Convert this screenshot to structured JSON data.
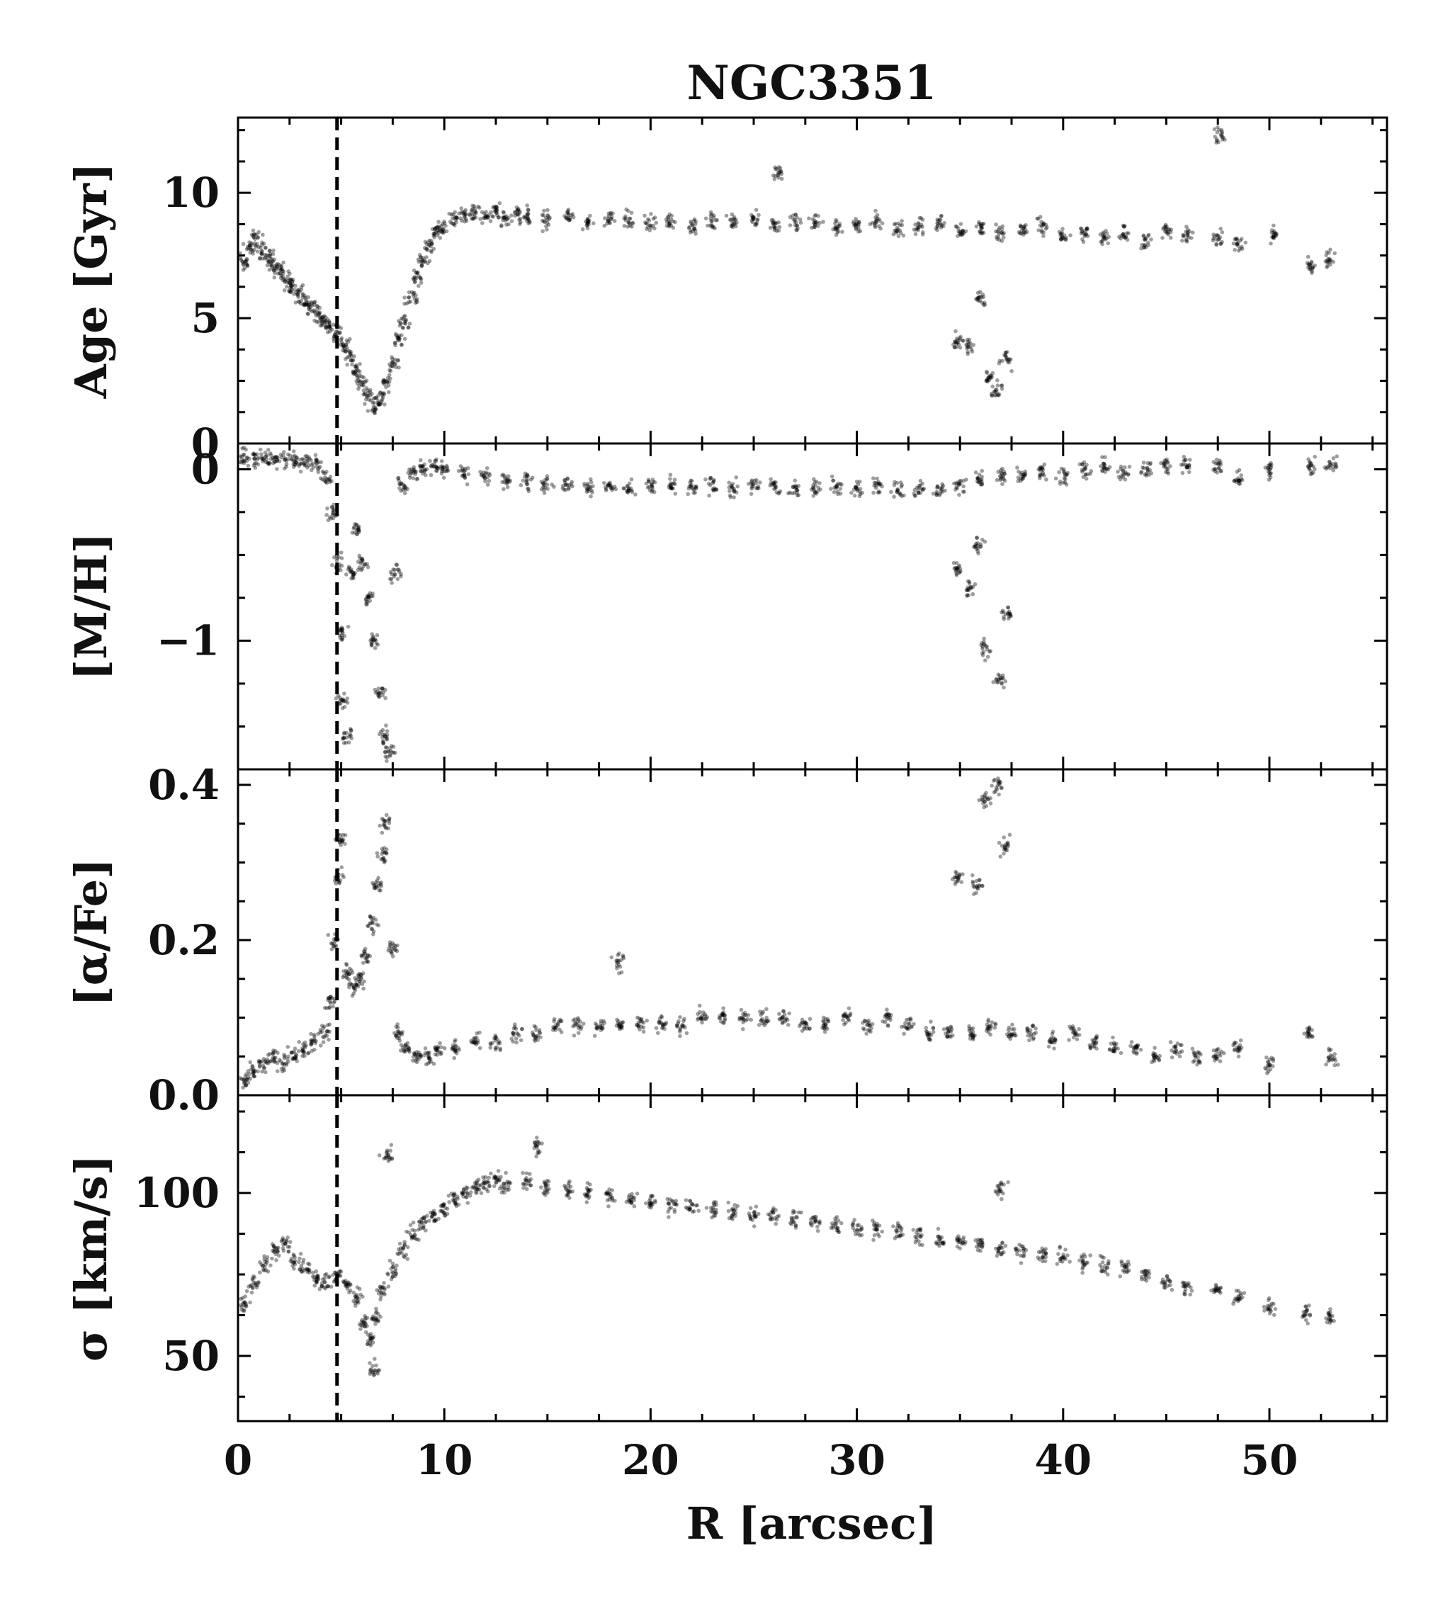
{
  "chart_data": {
    "type": "scatter",
    "title": "NGC3351",
    "xlabel": "R [arcsec]",
    "xlim": [
      0,
      55.7
    ],
    "xticks": [
      0,
      10,
      20,
      30,
      40,
      50
    ],
    "x_tick_labels": [
      "0",
      "10",
      "20",
      "30",
      "40",
      "50"
    ],
    "marker_color": "#000000",
    "reference_line": {
      "x": 4.8,
      "style": "dashed",
      "color": "#000000"
    },
    "panels": [
      {
        "name": "age",
        "ylabel": "Age [Gyr]",
        "ylim": [
          0,
          13
        ],
        "yticks": [
          0,
          5,
          10
        ],
        "y_tick_labels": [
          "0",
          "5",
          "10"
        ],
        "points": [
          [
            0.3,
            7.2
          ],
          [
            0.6,
            7.8
          ],
          [
            0.9,
            8.2
          ],
          [
            1.2,
            7.6
          ],
          [
            1.5,
            7.4
          ],
          [
            1.8,
            7.1
          ],
          [
            2.1,
            6.8
          ],
          [
            2.4,
            6.5
          ],
          [
            2.7,
            6.2
          ],
          [
            3.0,
            5.9
          ],
          [
            3.3,
            5.6
          ],
          [
            3.6,
            5.4
          ],
          [
            3.9,
            5.1
          ],
          [
            4.2,
            4.9
          ],
          [
            4.5,
            4.6
          ],
          [
            4.8,
            4.3
          ],
          [
            5.1,
            3.9
          ],
          [
            5.4,
            3.4
          ],
          [
            5.7,
            2.9
          ],
          [
            6.0,
            2.4
          ],
          [
            6.3,
            1.9
          ],
          [
            6.6,
            1.5
          ],
          [
            6.9,
            1.8
          ],
          [
            7.2,
            2.4
          ],
          [
            7.5,
            3.2
          ],
          [
            7.8,
            4.1
          ],
          [
            8.1,
            4.9
          ],
          [
            8.4,
            5.8
          ],
          [
            8.7,
            6.6
          ],
          [
            9.0,
            7.3
          ],
          [
            9.3,
            7.9
          ],
          [
            9.6,
            8.4
          ],
          [
            9.9,
            8.6
          ],
          [
            10.5,
            8.9
          ],
          [
            11.0,
            9.1
          ],
          [
            11.5,
            9.2
          ],
          [
            12.0,
            9.1
          ],
          [
            12.5,
            9.3
          ],
          [
            13.0,
            9.0
          ],
          [
            13.5,
            9.2
          ],
          [
            14.0,
            9.0
          ],
          [
            15.0,
            8.9
          ],
          [
            16.0,
            9.1
          ],
          [
            17.0,
            8.8
          ],
          [
            18.0,
            8.9
          ],
          [
            19.0,
            9.0
          ],
          [
            20.0,
            8.8
          ],
          [
            21.0,
            8.9
          ],
          [
            22.0,
            8.7
          ],
          [
            23.0,
            8.9
          ],
          [
            24.0,
            8.8
          ],
          [
            25.0,
            8.9
          ],
          [
            26.0,
            8.7
          ],
          [
            27.0,
            8.8
          ],
          [
            28.0,
            8.9
          ],
          [
            29.0,
            8.6
          ],
          [
            30.0,
            8.7
          ],
          [
            31.0,
            8.8
          ],
          [
            32.0,
            8.6
          ],
          [
            33.0,
            8.7
          ],
          [
            34.0,
            8.8
          ],
          [
            35.0,
            8.5
          ],
          [
            36.0,
            8.6
          ],
          [
            37.0,
            8.4
          ],
          [
            38.0,
            8.5
          ],
          [
            39.0,
            8.7
          ],
          [
            40.0,
            8.3
          ],
          [
            41.0,
            8.4
          ],
          [
            42.0,
            8.2
          ],
          [
            43.0,
            8.4
          ],
          [
            44.0,
            8.1
          ],
          [
            45.0,
            8.5
          ],
          [
            46.0,
            8.3
          ],
          [
            47.5,
            8.2
          ],
          [
            48.5,
            8.0
          ],
          [
            50.2,
            8.3
          ],
          [
            52.0,
            7.1
          ],
          [
            52.9,
            7.4
          ],
          [
            47.6,
            12.3
          ],
          [
            26.2,
            10.8
          ],
          [
            34.8,
            4.1
          ],
          [
            35.4,
            3.9
          ],
          [
            36.0,
            5.8
          ],
          [
            36.4,
            2.6
          ],
          [
            36.8,
            2.1
          ],
          [
            37.2,
            3.4
          ]
        ]
      },
      {
        "name": "metallicity",
        "ylabel": "[M/H]",
        "ylim": [
          -1.75,
          0.15
        ],
        "yticks": [
          -1,
          0
        ],
        "y_tick_labels": [
          "−1",
          "0"
        ],
        "points": [
          [
            0.3,
            0.07
          ],
          [
            0.8,
            0.06
          ],
          [
            1.3,
            0.06
          ],
          [
            1.8,
            0.05
          ],
          [
            2.3,
            0.06
          ],
          [
            2.8,
            0.05
          ],
          [
            3.3,
            0.04
          ],
          [
            3.8,
            0.03
          ],
          [
            4.3,
            -0.05
          ],
          [
            4.6,
            -0.25
          ],
          [
            4.8,
            -0.55
          ],
          [
            5.0,
            -0.95
          ],
          [
            5.1,
            -1.35
          ],
          [
            5.3,
            -1.55
          ],
          [
            5.5,
            -0.6
          ],
          [
            5.8,
            -0.35
          ],
          [
            6.0,
            -0.55
          ],
          [
            6.3,
            -0.75
          ],
          [
            6.6,
            -1.0
          ],
          [
            6.9,
            -1.3
          ],
          [
            7.1,
            -1.55
          ],
          [
            7.3,
            -1.65
          ],
          [
            7.6,
            -0.6
          ],
          [
            8.0,
            -0.1
          ],
          [
            8.5,
            -0.02
          ],
          [
            9.0,
            0.01
          ],
          [
            9.5,
            0.02
          ],
          [
            10.0,
            0.0
          ],
          [
            11.0,
            -0.02
          ],
          [
            12.0,
            -0.05
          ],
          [
            13.0,
            -0.06
          ],
          [
            14.0,
            -0.07
          ],
          [
            15.0,
            -0.08
          ],
          [
            16.0,
            -0.09
          ],
          [
            17.0,
            -0.1
          ],
          [
            18.0,
            -0.1
          ],
          [
            19.0,
            -0.11
          ],
          [
            20.0,
            -0.1
          ],
          [
            21.0,
            -0.1
          ],
          [
            22.0,
            -0.11
          ],
          [
            23.0,
            -0.1
          ],
          [
            24.0,
            -0.11
          ],
          [
            25.0,
            -0.1
          ],
          [
            26.0,
            -0.1
          ],
          [
            27.0,
            -0.11
          ],
          [
            28.0,
            -0.1
          ],
          [
            29.0,
            -0.1
          ],
          [
            30.0,
            -0.11
          ],
          [
            31.0,
            -0.1
          ],
          [
            32.0,
            -0.12
          ],
          [
            33.0,
            -0.11
          ],
          [
            34.0,
            -0.13
          ],
          [
            35.0,
            -0.1
          ],
          [
            36.0,
            -0.06
          ],
          [
            37.0,
            -0.04
          ],
          [
            38.0,
            -0.03
          ],
          [
            39.0,
            -0.01
          ],
          [
            40.0,
            -0.03
          ],
          [
            41.0,
            0.0
          ],
          [
            42.0,
            0.01
          ],
          [
            43.0,
            -0.02
          ],
          [
            44.0,
            0.0
          ],
          [
            45.0,
            0.02
          ],
          [
            46.0,
            0.02
          ],
          [
            47.5,
            0.02
          ],
          [
            48.5,
            -0.05
          ],
          [
            50.0,
            0.0
          ],
          [
            52.0,
            0.02
          ],
          [
            53.0,
            0.02
          ],
          [
            34.9,
            -0.58
          ],
          [
            35.5,
            -0.7
          ],
          [
            35.9,
            -0.45
          ],
          [
            36.2,
            -1.05
          ],
          [
            36.9,
            -1.22
          ],
          [
            37.3,
            -0.85
          ]
        ]
      },
      {
        "name": "alpha-fe",
        "ylabel": "[α/Fe]",
        "ylim": [
          0.0,
          0.42
        ],
        "yticks": [
          0.0,
          0.2,
          0.4
        ],
        "y_tick_labels": [
          "0.0",
          "0.2",
          "0.4"
        ],
        "points": [
          [
            0.3,
            0.02
          ],
          [
            0.7,
            0.03
          ],
          [
            1.2,
            0.04
          ],
          [
            1.7,
            0.05
          ],
          [
            2.2,
            0.04
          ],
          [
            2.7,
            0.05
          ],
          [
            3.2,
            0.06
          ],
          [
            3.7,
            0.07
          ],
          [
            4.2,
            0.08
          ],
          [
            4.5,
            0.12
          ],
          [
            4.7,
            0.2
          ],
          [
            4.9,
            0.28
          ],
          [
            5.0,
            0.33
          ],
          [
            5.3,
            0.16
          ],
          [
            5.6,
            0.14
          ],
          [
            5.9,
            0.15
          ],
          [
            6.2,
            0.18
          ],
          [
            6.5,
            0.22
          ],
          [
            6.8,
            0.27
          ],
          [
            7.0,
            0.31
          ],
          [
            7.2,
            0.35
          ],
          [
            7.5,
            0.19
          ],
          [
            7.8,
            0.08
          ],
          [
            8.2,
            0.06
          ],
          [
            8.7,
            0.05
          ],
          [
            9.2,
            0.05
          ],
          [
            9.7,
            0.06
          ],
          [
            10.5,
            0.06
          ],
          [
            11.5,
            0.07
          ],
          [
            12.5,
            0.07
          ],
          [
            13.5,
            0.08
          ],
          [
            14.5,
            0.08
          ],
          [
            15.5,
            0.09
          ],
          [
            16.5,
            0.09
          ],
          [
            17.5,
            0.09
          ],
          [
            18.5,
            0.09
          ],
          [
            19.5,
            0.09
          ],
          [
            20.5,
            0.09
          ],
          [
            21.5,
            0.09
          ],
          [
            22.5,
            0.1
          ],
          [
            23.5,
            0.1
          ],
          [
            24.5,
            0.1
          ],
          [
            25.5,
            0.1
          ],
          [
            26.5,
            0.1
          ],
          [
            27.5,
            0.09
          ],
          [
            28.5,
            0.09
          ],
          [
            29.5,
            0.1
          ],
          [
            30.5,
            0.09
          ],
          [
            31.5,
            0.1
          ],
          [
            32.5,
            0.09
          ],
          [
            33.5,
            0.08
          ],
          [
            34.5,
            0.08
          ],
          [
            35.5,
            0.08
          ],
          [
            36.5,
            0.09
          ],
          [
            37.5,
            0.08
          ],
          [
            38.5,
            0.08
          ],
          [
            39.5,
            0.07
          ],
          [
            40.5,
            0.08
          ],
          [
            41.5,
            0.07
          ],
          [
            42.5,
            0.06
          ],
          [
            43.5,
            0.06
          ],
          [
            44.5,
            0.05
          ],
          [
            45.5,
            0.06
          ],
          [
            46.5,
            0.05
          ],
          [
            47.5,
            0.05
          ],
          [
            48.5,
            0.06
          ],
          [
            50.0,
            0.04
          ],
          [
            51.9,
            0.08
          ],
          [
            53.0,
            0.05
          ],
          [
            18.5,
            0.17
          ],
          [
            34.9,
            0.28
          ],
          [
            35.8,
            0.27
          ],
          [
            36.2,
            0.38
          ],
          [
            36.8,
            0.4
          ],
          [
            37.2,
            0.32
          ]
        ]
      },
      {
        "name": "sigma",
        "ylabel": "σ [km/s]",
        "ylim": [
          30,
          130
        ],
        "yticks": [
          50,
          100
        ],
        "y_tick_labels": [
          "50",
          "100"
        ],
        "points": [
          [
            0.3,
            66
          ],
          [
            0.8,
            72
          ],
          [
            1.3,
            78
          ],
          [
            1.8,
            82
          ],
          [
            2.3,
            85
          ],
          [
            2.8,
            79
          ],
          [
            3.3,
            76
          ],
          [
            3.8,
            74
          ],
          [
            4.3,
            73
          ],
          [
            4.8,
            74
          ],
          [
            5.3,
            72
          ],
          [
            5.8,
            68
          ],
          [
            6.1,
            60
          ],
          [
            6.4,
            55
          ],
          [
            6.7,
            62
          ],
          [
            7.0,
            70
          ],
          [
            7.5,
            76
          ],
          [
            8.0,
            82
          ],
          [
            8.5,
            88
          ],
          [
            9.0,
            91
          ],
          [
            9.5,
            93
          ],
          [
            10.0,
            95
          ],
          [
            10.5,
            98
          ],
          [
            11.0,
            100
          ],
          [
            11.5,
            102
          ],
          [
            12.0,
            103
          ],
          [
            12.5,
            104
          ],
          [
            13.0,
            103
          ],
          [
            14.0,
            104
          ],
          [
            15.0,
            102
          ],
          [
            16.0,
            101
          ],
          [
            17.0,
            100
          ],
          [
            18.0,
            99
          ],
          [
            19.0,
            98
          ],
          [
            20.0,
            97
          ],
          [
            21.0,
            96
          ],
          [
            22.0,
            96
          ],
          [
            23.0,
            95
          ],
          [
            24.0,
            94
          ],
          [
            25.0,
            93
          ],
          [
            26.0,
            93
          ],
          [
            27.0,
            92
          ],
          [
            28.0,
            91
          ],
          [
            29.0,
            90
          ],
          [
            30.0,
            89
          ],
          [
            31.0,
            89
          ],
          [
            32.0,
            88
          ],
          [
            33.0,
            87
          ],
          [
            34.0,
            86
          ],
          [
            35.0,
            85
          ],
          [
            36.0,
            84
          ],
          [
            37.0,
            83
          ],
          [
            38.0,
            82
          ],
          [
            39.0,
            81
          ],
          [
            40.0,
            80
          ],
          [
            41.0,
            79
          ],
          [
            42.0,
            78
          ],
          [
            43.0,
            77
          ],
          [
            44.0,
            75
          ],
          [
            45.0,
            73
          ],
          [
            46.0,
            71
          ],
          [
            47.5,
            70
          ],
          [
            48.5,
            68
          ],
          [
            50.0,
            65
          ],
          [
            51.8,
            63
          ],
          [
            52.9,
            62
          ],
          [
            6.6,
            46
          ],
          [
            7.2,
            112
          ],
          [
            37.0,
            101
          ],
          [
            14.5,
            114
          ]
        ]
      }
    ]
  }
}
